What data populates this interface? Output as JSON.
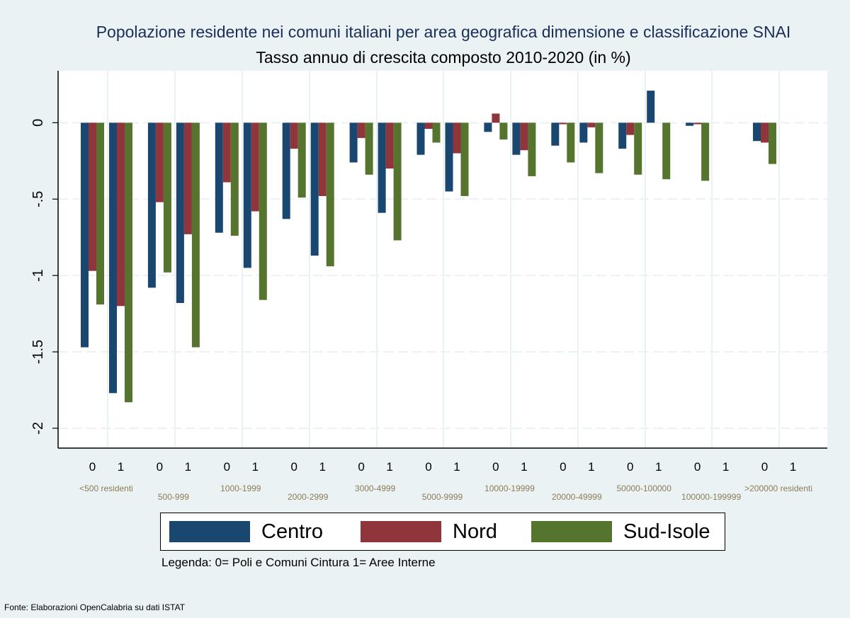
{
  "chart_data": {
    "type": "bar",
    "title": "Popolazione residente nei comuni italiani per area geografica dimensione e classificazione SNAI",
    "subtitle": "Tasso annuo di crescita composto 2010-2020 (in %)",
    "xlabel": "",
    "ylabel": "",
    "ylim": [
      -2.13,
      0.34
    ],
    "y_ticks": [
      0,
      -0.5,
      -1,
      -1.5,
      -2
    ],
    "y_tick_labels": [
      "0",
      "-.5",
      "-1",
      "-1.5",
      "-2"
    ],
    "grid": true,
    "legend_position": "bottom",
    "groups": [
      {
        "label": "<500 residenti",
        "subgroups": [
          "0",
          "1"
        ]
      },
      {
        "label": "500-999",
        "subgroups": [
          "0",
          "1"
        ]
      },
      {
        "label": "1000-1999",
        "subgroups": [
          "0",
          "1"
        ]
      },
      {
        "label": "2000-2999",
        "subgroups": [
          "0",
          "1"
        ]
      },
      {
        "label": "3000-4999",
        "subgroups": [
          "0",
          "1"
        ]
      },
      {
        "label": "5000-9999",
        "subgroups": [
          "0",
          "1"
        ]
      },
      {
        "label": "10000-19999",
        "subgroups": [
          "0",
          "1"
        ]
      },
      {
        "label": "20000-49999",
        "subgroups": [
          "0",
          "1"
        ]
      },
      {
        "label": "50000-100000",
        "subgroups": [
          "0",
          "1"
        ]
      },
      {
        "label": "100000-199999",
        "subgroups": [
          "0",
          "1"
        ]
      },
      {
        "label": ">200000 residenti",
        "subgroups": [
          "0",
          "1"
        ]
      }
    ],
    "series": [
      {
        "name": "Centro",
        "color": "#1a476f",
        "values": [
          -1.47,
          -1.77,
          -1.08,
          -1.18,
          -0.72,
          -0.95,
          -0.63,
          -0.87,
          -0.26,
          -0.59,
          -0.21,
          -0.45,
          -0.06,
          -0.21,
          -0.15,
          -0.13,
          -0.17,
          0.21,
          -0.02,
          null,
          -0.12,
          null
        ]
      },
      {
        "name": "Nord",
        "color": "#90353b",
        "values": [
          -0.97,
          -1.2,
          -0.52,
          -0.73,
          -0.39,
          -0.58,
          -0.17,
          -0.48,
          -0.1,
          -0.3,
          -0.04,
          -0.2,
          0.06,
          -0.18,
          -0.01,
          -0.03,
          -0.08,
          null,
          -0.01,
          null,
          -0.13,
          null
        ]
      },
      {
        "name": "Sud-Isole",
        "color": "#55752f",
        "values": [
          -1.19,
          -1.83,
          -0.98,
          -1.47,
          -0.74,
          -1.16,
          -0.49,
          -0.94,
          -0.34,
          -0.77,
          -0.13,
          -0.48,
          -0.11,
          -0.35,
          -0.26,
          -0.33,
          -0.34,
          -0.37,
          -0.38,
          null,
          -0.27,
          null
        ]
      }
    ]
  },
  "legend_note": "Legenda: 0= Poli e Comuni Cintura  1= Aree Interne",
  "source_note": "Fonte: Elaborazioni OpenCalabria su dati ISTAT",
  "colors": {
    "background": "#eaf2f3",
    "plot_background": "#ffffff",
    "category_label": "#8c7d57",
    "grid": "#eaf2f3"
  }
}
